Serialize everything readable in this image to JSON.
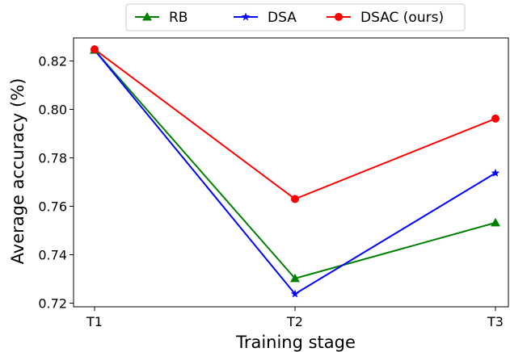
{
  "chart_data": {
    "type": "line",
    "categories": [
      "T1",
      "T2",
      "T3"
    ],
    "xlabel": "Training stage",
    "ylabel": "Average accuracy (%)",
    "ylim": [
      0.7185,
      0.8295
    ],
    "yticks": [
      "0.72",
      "0.74",
      "0.76",
      "0.78",
      "0.80",
      "0.82"
    ],
    "grid": false,
    "legend_placement": "top-center",
    "series": [
      {
        "name": "RB",
        "color": "#008000",
        "marker": "triangle",
        "values": [
          0.8245,
          0.7302,
          0.7532
        ]
      },
      {
        "name": "DSA",
        "color": "#0000ff",
        "marker": "star",
        "values": [
          0.8245,
          0.7238,
          0.7737
        ]
      },
      {
        "name": "DSAC (ours)",
        "color": "#ff0000",
        "marker": "circle",
        "values": [
          0.8248,
          0.763,
          0.7962
        ]
      }
    ]
  }
}
